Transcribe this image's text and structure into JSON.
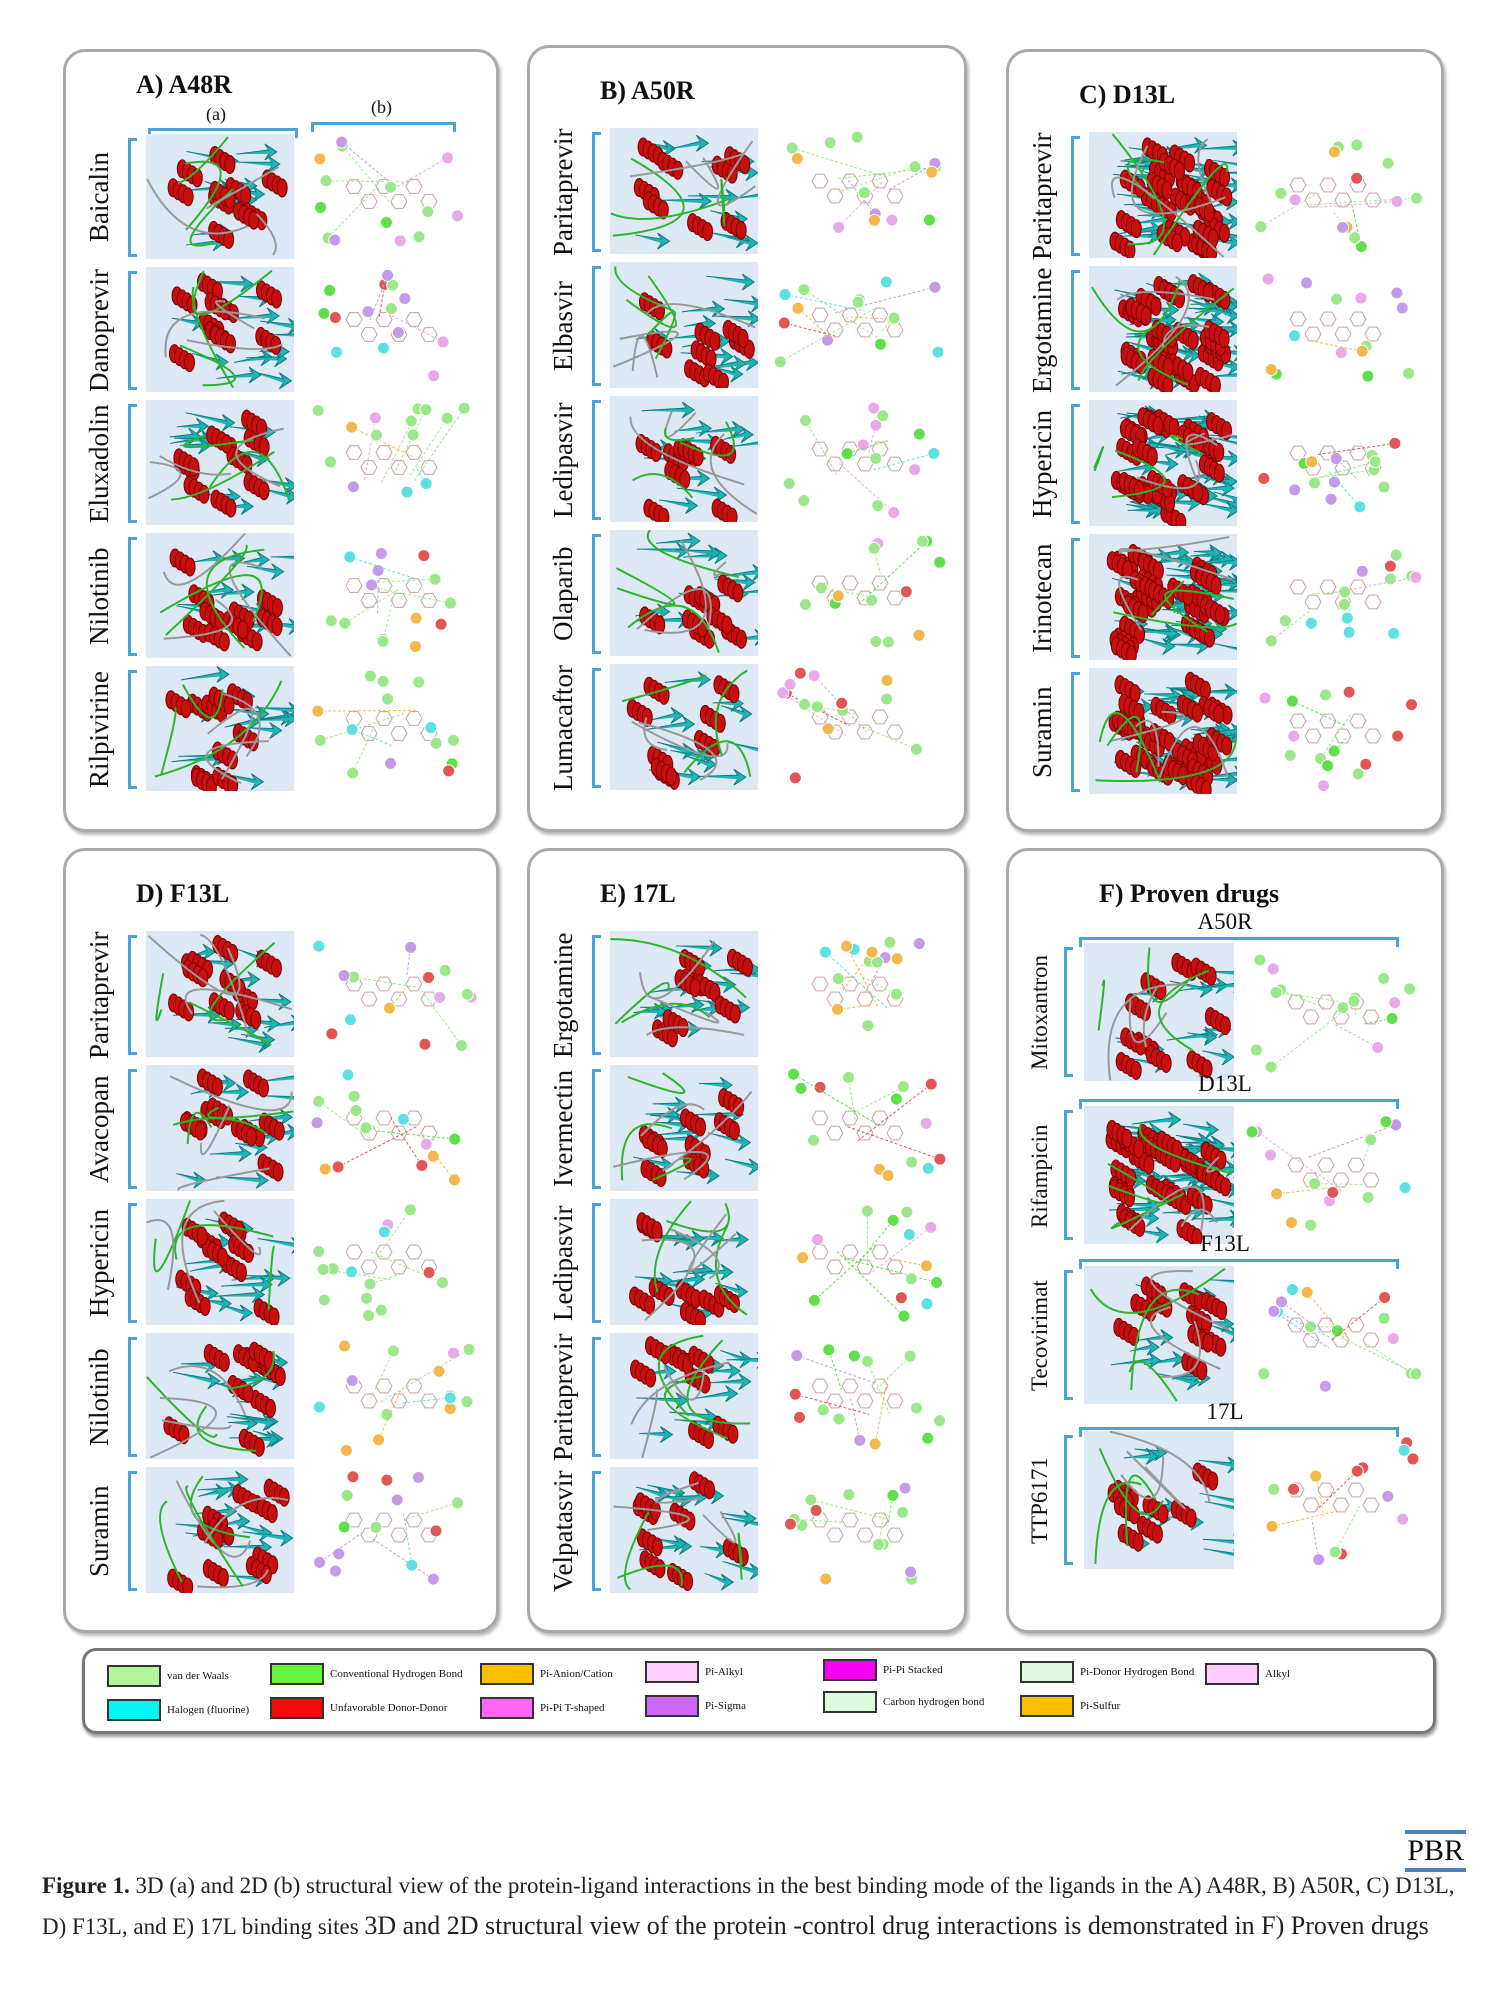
{
  "panels": [
    {
      "title": "A)  A48R",
      "sub_a": "(a)",
      "sub_b": "(b)",
      "rows": [
        "Baicalin",
        "Danoprevir",
        "Eluxadolin",
        "Nilotinib",
        "Rilpivirine"
      ]
    },
    {
      "title": "B)  A50R",
      "rows": [
        "Paritaprevir",
        "Elbasvir",
        "Ledipasvir",
        "Olaparib",
        "Lumacaftor"
      ]
    },
    {
      "title": "C)  D13L",
      "rows": [
        "Paritaprevir",
        "Ergotamine",
        "Hypericin",
        "Irinotecan",
        "Suramin"
      ]
    },
    {
      "title": "D)  F13L",
      "rows": [
        "Paritaprevir",
        "Avacopan",
        "Hypericin",
        "Nilotinib",
        "Suramin"
      ]
    },
    {
      "title": "E)  17L",
      "rows": [
        "Ergotamine",
        "Ivermectin",
        "Ledipasvir",
        "Paritaprevir",
        "Velpatasvir"
      ]
    },
    {
      "title": "F)  Proven drugs",
      "groups": [
        {
          "target": "A50R",
          "drug": "Mitoxantron"
        },
        {
          "target": "D13L",
          "drug": "Rifampicin"
        },
        {
          "target": "F13L",
          "drug": "Tecovirimat"
        },
        {
          "target": "17L",
          "drug": "TTP6171"
        }
      ]
    }
  ],
  "legend": [
    {
      "label": "van der Waals",
      "color": "#b3f59a"
    },
    {
      "label": "Halogen (fluorine)",
      "color": "#00f5f5"
    },
    {
      "label": "Conventional Hydrogen Bond",
      "color": "#66f53a"
    },
    {
      "label": "Unfavorable Donor-Donor",
      "color": "#f50a0a"
    },
    {
      "label": "Pi-Anion/Cation",
      "color": "#fbbf00"
    },
    {
      "label": "Pi-Pi T-shaped",
      "color": "#ff66f5"
    },
    {
      "label": "Pi-Alkyl",
      "color": "#ffccff"
    },
    {
      "label": "Pi-Sigma",
      "color": "#cc66ff"
    },
    {
      "label": "Pi-Pi Stacked",
      "color": "#f500f0"
    },
    {
      "label": "Carbon hydrogen bond",
      "color": "#ddfadd"
    },
    {
      "label": "Pi-Donor Hydrogen Bond",
      "color": "#ddfadd"
    },
    {
      "label": "Pi-Sulfur",
      "color": "#fbbf00"
    },
    {
      "label": "Alkyl",
      "color": "#ffccff"
    }
  ],
  "logo": "PBR",
  "caption": {
    "label": "Figure 1.",
    "text1": " 3D (a) and 2D (b) structural view of the protein-ligand interactions in the best binding mode of the ligands in the A) A48R, B) A50R, C) D13L, D) F13L, and E) 17L binding sites ",
    "text2": "3D and 2D structural view of the protein -control drug interactions is demonstrated in F) Proven drugs"
  }
}
